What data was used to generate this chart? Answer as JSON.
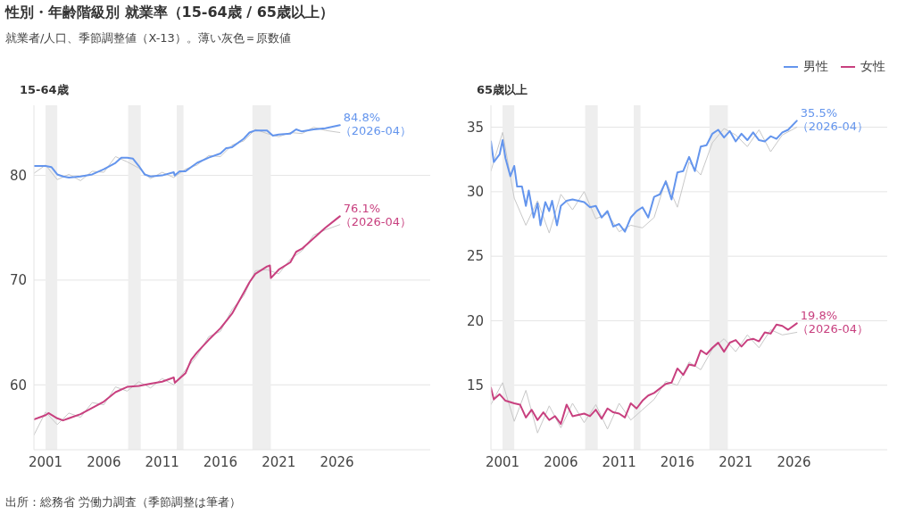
{
  "chart_data": [
    {
      "type": "line",
      "title": "性別・年齢階級別 就業率（15-64歳 / 65歳以上）",
      "subtitle": "就業者/人口、季節調整値（X-13）。薄い灰色＝原数値",
      "ylabel": "15-64歳",
      "xlim": [
        "2000-01",
        "2034-01"
      ],
      "xticks": [
        "2001",
        "2006",
        "2011",
        "2016",
        "2021",
        "2026"
      ],
      "ylim": [
        53.8,
        86.7
      ],
      "yticks": [
        60,
        70,
        80
      ],
      "grid": "y",
      "legend": false,
      "marker": "none",
      "line_style": "solid",
      "bands": [
        {
          "axis": "x",
          "from": "2001-01",
          "to": "2002-01",
          "color": "#eeeeee"
        },
        {
          "axis": "x",
          "from": "2008-02",
          "to": "2009-03",
          "color": "#eeeeee"
        },
        {
          "axis": "x",
          "from": "2012-04",
          "to": "2012-11",
          "color": "#eeeeee"
        },
        {
          "axis": "x",
          "from": "2018-10",
          "to": "2020-05",
          "color": "#eeeeee"
        }
      ],
      "series": [
        {
          "color": "#c8c8c8",
          "x": [
            "2000-01",
            "2001-01",
            "2002-01",
            "2003-01",
            "2004-01",
            "2005-01",
            "2006-01",
            "2007-01",
            "2008-01",
            "2009-01",
            "2010-01",
            "2011-01",
            "2012-01",
            "2013-01",
            "2014-01",
            "2015-01",
            "2016-01",
            "2017-01",
            "2018-01",
            "2019-01",
            "2020-01",
            "2021-01",
            "2022-01",
            "2023-01",
            "2024-01",
            "2025-01",
            "2026-04"
          ],
          "values": [
            80.2,
            81.0,
            79.6,
            80.1,
            79.5,
            80.4,
            80.3,
            81.8,
            81.3,
            80.7,
            79.7,
            80.3,
            79.8,
            80.6,
            81.0,
            81.9,
            81.8,
            82.9,
            83.3,
            84.4,
            84.0,
            83.7,
            84.1,
            84.0,
            84.6,
            84.3,
            84.1
          ]
        },
        {
          "color": "#c8c8c8",
          "x": [
            "2000-01",
            "2001-01",
            "2002-01",
            "2003-01",
            "2004-01",
            "2005-01",
            "2006-01",
            "2007-01",
            "2008-01",
            "2009-01",
            "2010-01",
            "2011-01",
            "2012-01",
            "2013-01",
            "2014-01",
            "2015-01",
            "2016-01",
            "2017-01",
            "2018-01",
            "2019-01",
            "2020-01",
            "2021-01",
            "2022-01",
            "2023-01",
            "2024-01",
            "2025-01",
            "2026-04"
          ],
          "values": [
            55.2,
            57.4,
            56.2,
            57.3,
            56.9,
            58.3,
            58.1,
            59.8,
            59.4,
            60.3,
            59.7,
            60.6,
            60.0,
            61.4,
            62.8,
            64.6,
            65.1,
            67.2,
            68.5,
            70.9,
            71.0,
            70.6,
            72.0,
            72.8,
            74.3,
            74.8,
            75.3
          ]
        },
        {
          "color": "#6495ed",
          "x": [
            "2000-01",
            "2001-01",
            "2001-07",
            "2002-01",
            "2002-07",
            "2003-01",
            "2004-01",
            "2005-01",
            "2006-01",
            "2007-01",
            "2007-07",
            "2008-01",
            "2008-07",
            "2009-01",
            "2009-07",
            "2010-01",
            "2011-01",
            "2012-01",
            "2012-02",
            "2012-07",
            "2013-01",
            "2014-01",
            "2015-01",
            "2016-01",
            "2016-07",
            "2017-01",
            "2018-01",
            "2018-07",
            "2019-01",
            "2020-01",
            "2020-07",
            "2021-01",
            "2022-01",
            "2022-07",
            "2023-01",
            "2024-01",
            "2025-01",
            "2026-04"
          ],
          "values": [
            80.9,
            80.9,
            80.8,
            80.1,
            79.9,
            79.8,
            79.9,
            80.1,
            80.6,
            81.2,
            81.7,
            81.7,
            81.6,
            80.9,
            80.1,
            79.9,
            80.0,
            80.3,
            80.0,
            80.4,
            80.4,
            81.2,
            81.7,
            82.1,
            82.6,
            82.7,
            83.5,
            84.1,
            84.3,
            84.3,
            83.8,
            83.9,
            84.0,
            84.4,
            84.2,
            84.4,
            84.5,
            84.8
          ]
        },
        {
          "color": "#c8407f",
          "x": [
            "2000-01",
            "2001-01",
            "2001-04",
            "2002-01",
            "2002-07",
            "2003-01",
            "2004-01",
            "2005-01",
            "2006-01",
            "2007-01",
            "2008-01",
            "2009-01",
            "2010-01",
            "2011-01",
            "2012-01",
            "2012-02",
            "2013-01",
            "2013-07",
            "2014-01",
            "2015-01",
            "2016-01",
            "2017-01",
            "2018-01",
            "2018-07",
            "2019-01",
            "2020-01",
            "2020-04",
            "2020-05",
            "2021-01",
            "2022-01",
            "2022-07",
            "2023-01",
            "2024-01",
            "2025-01",
            "2026-04"
          ],
          "values": [
            56.7,
            57.1,
            57.3,
            56.8,
            56.6,
            56.8,
            57.2,
            57.8,
            58.4,
            59.3,
            59.8,
            59.9,
            60.1,
            60.3,
            60.7,
            60.2,
            61.1,
            62.4,
            63.1,
            64.3,
            65.4,
            66.8,
            68.8,
            69.8,
            70.6,
            71.3,
            71.4,
            70.2,
            71.0,
            71.7,
            72.7,
            73.0,
            74.0,
            75.0,
            76.1
          ]
        }
      ],
      "annotations": [
        {
          "text": "84.8%\n（2026-04）",
          "x": "2026-04",
          "y": 84.8
        },
        {
          "text": "76.1%\n（2026-04）",
          "x": "2026-04",
          "y": 76.1
        },
        "出所：総務省 労働力調査（季節調整は筆者）"
      ]
    },
    {
      "type": "line",
      "ylabel": "65歳以上",
      "xlim": [
        "2000-01",
        "2034-01"
      ],
      "xticks": [
        "2001",
        "2006",
        "2011",
        "2016",
        "2021",
        "2026"
      ],
      "ylim": [
        10.0,
        36.7
      ],
      "yticks": [
        15,
        20,
        25,
        30,
        35
      ],
      "grid": "y",
      "legend": "top right",
      "marker": "none",
      "line_style": "solid",
      "bands": [
        {
          "axis": "x",
          "from": "2001-01",
          "to": "2002-01",
          "color": "#eeeeee"
        },
        {
          "axis": "x",
          "from": "2008-02",
          "to": "2009-03",
          "color": "#eeeeee"
        },
        {
          "axis": "x",
          "from": "2012-04",
          "to": "2012-11",
          "color": "#eeeeee"
        },
        {
          "axis": "x",
          "from": "2018-10",
          "to": "2020-05",
          "color": "#eeeeee"
        }
      ],
      "series": [
        {
          "color": "#c8c8c8",
          "x": [
            "2000-01",
            "2001-01",
            "2002-01",
            "2003-01",
            "2004-01",
            "2005-01",
            "2006-01",
            "2007-01",
            "2008-01",
            "2009-01",
            "2010-01",
            "2011-01",
            "2012-01",
            "2013-01",
            "2014-01",
            "2015-01",
            "2016-01",
            "2017-01",
            "2018-01",
            "2019-01",
            "2020-01",
            "2021-01",
            "2022-01",
            "2023-01",
            "2024-01",
            "2025-01",
            "2026-04"
          ],
          "values": [
            31.6,
            34.6,
            29.5,
            27.4,
            29.3,
            26.8,
            29.8,
            28.6,
            30.0,
            27.9,
            28.3,
            26.9,
            27.4,
            27.2,
            28.0,
            30.9,
            28.8,
            32.3,
            31.3,
            33.8,
            34.9,
            34.4,
            33.5,
            34.8,
            33.1,
            34.4,
            35.0
          ]
        },
        {
          "color": "#c8c8c8",
          "x": [
            "2000-01",
            "2001-01",
            "2002-01",
            "2003-01",
            "2004-01",
            "2005-01",
            "2006-01",
            "2007-01",
            "2008-01",
            "2009-01",
            "2010-01",
            "2011-01",
            "2012-01",
            "2013-01",
            "2014-01",
            "2015-01",
            "2016-01",
            "2017-01",
            "2018-01",
            "2019-01",
            "2020-01",
            "2021-01",
            "2022-01",
            "2023-01",
            "2024-01",
            "2025-01",
            "2026-04"
          ],
          "values": [
            13.5,
            15.2,
            12.2,
            14.6,
            11.3,
            13.4,
            11.7,
            13.6,
            12.1,
            13.5,
            11.6,
            13.6,
            12.3,
            13.1,
            13.9,
            15.3,
            15.0,
            16.8,
            16.2,
            17.8,
            18.6,
            17.6,
            18.9,
            17.9,
            19.3,
            18.9,
            19.1
          ]
        },
        {
          "name": "男性",
          "color": "#6495ed",
          "x": [
            "2000-01",
            "2000-04",
            "2000-10",
            "2001-01",
            "2001-04",
            "2001-09",
            "2002-01",
            "2002-04",
            "2002-09",
            "2003-01",
            "2003-04",
            "2003-09",
            "2004-01",
            "2004-04",
            "2004-09",
            "2005-01",
            "2005-04",
            "2005-09",
            "2006-01",
            "2006-07",
            "2007-01",
            "2008-01",
            "2008-07",
            "2009-01",
            "2009-07",
            "2010-01",
            "2010-07",
            "2011-01",
            "2011-07",
            "2012-01",
            "2012-07",
            "2013-01",
            "2013-07",
            "2014-01",
            "2014-07",
            "2015-01",
            "2015-07",
            "2016-01",
            "2016-07",
            "2017-01",
            "2017-07",
            "2018-01",
            "2018-07",
            "2019-01",
            "2019-07",
            "2020-01",
            "2020-07",
            "2021-01",
            "2021-07",
            "2022-01",
            "2022-07",
            "2023-01",
            "2023-07",
            "2024-01",
            "2024-07",
            "2025-01",
            "2025-07",
            "2026-04"
          ],
          "values": [
            33.9,
            32.3,
            32.9,
            34.0,
            32.6,
            31.2,
            32.0,
            30.4,
            30.4,
            28.9,
            30.1,
            28.0,
            29.1,
            27.4,
            29.2,
            28.5,
            29.3,
            27.4,
            28.9,
            29.3,
            29.4,
            29.2,
            28.8,
            28.9,
            28.0,
            28.5,
            27.3,
            27.5,
            26.9,
            28.0,
            28.5,
            28.8,
            28.0,
            29.6,
            29.8,
            30.8,
            29.4,
            31.5,
            31.6,
            32.7,
            31.6,
            33.5,
            33.6,
            34.5,
            34.8,
            34.2,
            34.7,
            33.9,
            34.5,
            34.0,
            34.6,
            34.0,
            33.9,
            34.3,
            34.1,
            34.6,
            34.8,
            35.5
          ]
        },
        {
          "name": "女性",
          "color": "#c8407f",
          "x": [
            "2000-01",
            "2000-04",
            "2000-10",
            "2001-04",
            "2002-01",
            "2002-07",
            "2003-01",
            "2003-07",
            "2004-01",
            "2004-07",
            "2005-01",
            "2005-07",
            "2006-01",
            "2006-07",
            "2007-01",
            "2008-01",
            "2008-07",
            "2009-01",
            "2009-07",
            "2010-01",
            "2010-07",
            "2011-01",
            "2011-07",
            "2012-01",
            "2012-07",
            "2013-01",
            "2013-07",
            "2014-01",
            "2015-01",
            "2015-07",
            "2016-01",
            "2016-07",
            "2017-01",
            "2017-07",
            "2018-01",
            "2018-07",
            "2019-01",
            "2019-07",
            "2020-01",
            "2020-07",
            "2021-01",
            "2021-07",
            "2022-01",
            "2022-07",
            "2023-01",
            "2023-07",
            "2024-01",
            "2024-07",
            "2025-01",
            "2025-07",
            "2026-04"
          ],
          "values": [
            14.8,
            13.9,
            14.3,
            13.8,
            13.6,
            13.5,
            12.5,
            13.1,
            12.3,
            12.9,
            12.3,
            12.6,
            12.0,
            13.5,
            12.6,
            12.8,
            12.6,
            13.1,
            12.4,
            13.2,
            12.9,
            12.8,
            12.5,
            13.6,
            13.2,
            13.8,
            14.2,
            14.4,
            15.1,
            15.2,
            16.3,
            15.8,
            16.6,
            16.5,
            17.7,
            17.4,
            17.9,
            18.3,
            17.6,
            18.3,
            18.5,
            18.0,
            18.5,
            18.6,
            18.4,
            19.1,
            19.0,
            19.7,
            19.6,
            19.3,
            19.8
          ]
        }
      ],
      "annotations": [
        {
          "text": "35.5%\n（2026-04）",
          "x": "2026-04",
          "y": 35.5
        },
        {
          "text": "19.8%\n（2026-04）",
          "x": "2026-04",
          "y": 19.8
        }
      ]
    }
  ]
}
